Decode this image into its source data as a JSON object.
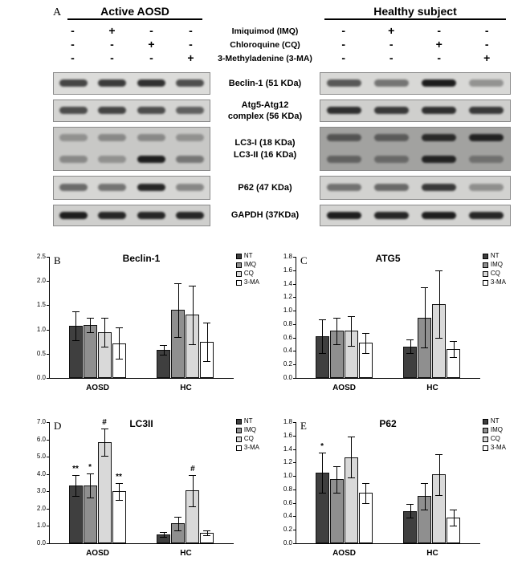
{
  "figure": {
    "panel_a_letter": "A"
  },
  "panel_a": {
    "left_header": "Active AOSD",
    "right_header": "Healthy subject",
    "treatments": [
      {
        "label": "Imiquimod (IMQ)",
        "left": [
          "-",
          "+",
          "-",
          "-"
        ],
        "right": [
          "-",
          "+",
          "-",
          "-"
        ]
      },
      {
        "label": "Chloroquine (CQ)",
        "left": [
          "-",
          "-",
          "+",
          "-"
        ],
        "right": [
          "-",
          "-",
          "+",
          "-"
        ]
      },
      {
        "label": "3-Methyladenine (3-MA)",
        "left": [
          "-",
          "-",
          "-",
          "+"
        ],
        "right": [
          "-",
          "-",
          "-",
          "+"
        ]
      }
    ],
    "blots": [
      {
        "label": "Beclin-1 (51 KDa)",
        "left": {
          "bg": "#dcdcda",
          "rows": [
            [
              0.75,
              0.8,
              0.85,
              0.7
            ]
          ]
        },
        "right": {
          "bg": "#d8d8d6",
          "rows": [
            [
              0.65,
              0.5,
              0.95,
              0.35
            ]
          ]
        }
      },
      {
        "label": "Atg5-Atg12\ncomplex (56 KDa)",
        "left": {
          "bg": "#d4d4d2",
          "rows": [
            [
              0.7,
              0.75,
              0.7,
              0.6
            ]
          ]
        },
        "right": {
          "bg": "#cfcfcd",
          "rows": [
            [
              0.85,
              0.8,
              0.85,
              0.8
            ]
          ]
        }
      },
      {
        "label": "LC3-I (18 KDa)\nLC3-II (16 KDa)",
        "left": {
          "bg": "#c8c8c6",
          "rows": [
            [
              0.3,
              0.35,
              0.35,
              0.3
            ],
            [
              0.35,
              0.3,
              0.95,
              0.45
            ]
          ]
        },
        "right": {
          "bg": "#a2a2a0",
          "rows": [
            [
              0.55,
              0.5,
              0.85,
              0.9
            ],
            [
              0.45,
              0.4,
              0.9,
              0.35
            ]
          ]
        }
      },
      {
        "label": "P62 (47 KDa)",
        "left": {
          "bg": "#d6d6d4",
          "rows": [
            [
              0.55,
              0.5,
              0.9,
              0.4
            ]
          ]
        },
        "right": {
          "bg": "#d2d2d0",
          "rows": [
            [
              0.5,
              0.55,
              0.8,
              0.35
            ]
          ]
        }
      },
      {
        "label": "GAPDH (37KDa)",
        "left": {
          "bg": "#cfcfcd",
          "rows": [
            [
              0.95,
              0.9,
              0.9,
              0.9
            ]
          ]
        },
        "right": {
          "bg": "#d4d4d2",
          "rows": [
            [
              0.95,
              0.9,
              0.95,
              0.9
            ]
          ]
        }
      }
    ]
  },
  "legend": {
    "series": [
      "NT",
      "IMQ",
      "CQ",
      "3-MA"
    ],
    "colors": [
      "#3f3f3f",
      "#8f8f8f",
      "#d9d9d9",
      "#ffffff"
    ]
  },
  "chart_data": [
    {
      "type": "bar",
      "panel_label": "B",
      "title": "Beclin-1",
      "ymax": 2.5,
      "yticks": [
        "0.0",
        "0.5",
        "1.0",
        "1.5",
        "2.0",
        "2.5"
      ],
      "categories": [
        "AOSD",
        "HC"
      ],
      "group_centers": [
        0.26,
        0.74
      ],
      "series": [
        {
          "name": "NT",
          "color": "#3f3f3f",
          "values": [
            1.08,
            0.58
          ],
          "errors": [
            0.3,
            0.1
          ],
          "annotations": [
            "",
            ""
          ]
        },
        {
          "name": "IMQ",
          "color": "#8f8f8f",
          "values": [
            1.1,
            1.4
          ],
          "errors": [
            0.15,
            0.55
          ],
          "annotations": [
            "",
            ""
          ]
        },
        {
          "name": "CQ",
          "color": "#d9d9d9",
          "values": [
            0.95,
            1.3
          ],
          "errors": [
            0.3,
            0.6
          ],
          "annotations": [
            "",
            ""
          ]
        },
        {
          "name": "3-MA",
          "color": "#ffffff",
          "values": [
            0.72,
            0.75
          ],
          "errors": [
            0.32,
            0.4
          ],
          "annotations": [
            "",
            ""
          ]
        }
      ]
    },
    {
      "type": "bar",
      "panel_label": "C",
      "title": "ATG5",
      "ymax": 1.8,
      "yticks": [
        "0.0",
        "0.2",
        "0.4",
        "0.6",
        "0.8",
        "1.0",
        "1.2",
        "1.4",
        "1.6",
        "1.8"
      ],
      "categories": [
        "AOSD",
        "HC"
      ],
      "group_centers": [
        0.26,
        0.74
      ],
      "series": [
        {
          "name": "NT",
          "color": "#3f3f3f",
          "values": [
            0.62,
            0.47
          ],
          "errors": [
            0.25,
            0.1
          ],
          "annotations": [
            "",
            ""
          ]
        },
        {
          "name": "IMQ",
          "color": "#8f8f8f",
          "values": [
            0.7,
            0.9
          ],
          "errors": [
            0.2,
            0.45
          ],
          "annotations": [
            "",
            ""
          ]
        },
        {
          "name": "CQ",
          "color": "#d9d9d9",
          "values": [
            0.7,
            1.1
          ],
          "errors": [
            0.22,
            0.5
          ],
          "annotations": [
            "",
            ""
          ]
        },
        {
          "name": "3-MA",
          "color": "#ffffff",
          "values": [
            0.52,
            0.43
          ],
          "errors": [
            0.15,
            0.12
          ],
          "annotations": [
            "",
            ""
          ]
        }
      ]
    },
    {
      "type": "bar",
      "panel_label": "D",
      "title": "LC3II",
      "ymax": 7.0,
      "yticks": [
        "0.0",
        "1.0",
        "2.0",
        "3.0",
        "4.0",
        "5.0",
        "6.0",
        "7.0"
      ],
      "categories": [
        "AOSD",
        "HC"
      ],
      "group_centers": [
        0.26,
        0.74
      ],
      "series": [
        {
          "name": "NT",
          "color": "#3f3f3f",
          "values": [
            3.35,
            0.5
          ],
          "errors": [
            0.6,
            0.15
          ],
          "annotations": [
            "**",
            ""
          ]
        },
        {
          "name": "IMQ",
          "color": "#8f8f8f",
          "values": [
            3.35,
            1.15
          ],
          "errors": [
            0.7,
            0.4
          ],
          "annotations": [
            "*",
            ""
          ]
        },
        {
          "name": "CQ",
          "color": "#d9d9d9",
          "values": [
            5.85,
            3.05
          ],
          "errors": [
            0.8,
            0.9
          ],
          "annotations": [
            "#",
            "#"
          ]
        },
        {
          "name": "3-MA",
          "color": "#ffffff",
          "values": [
            3.0,
            0.6
          ],
          "errors": [
            0.5,
            0.15
          ],
          "annotations": [
            "**",
            ""
          ]
        }
      ]
    },
    {
      "type": "bar",
      "panel_label": "E",
      "title": "P62",
      "ymax": 1.8,
      "yticks": [
        "0.0",
        "0.2",
        "0.4",
        "0.6",
        "0.8",
        "1.0",
        "1.2",
        "1.4",
        "1.6",
        "1.8"
      ],
      "categories": [
        "AOSD",
        "HC"
      ],
      "group_centers": [
        0.26,
        0.74
      ],
      "series": [
        {
          "name": "NT",
          "color": "#3f3f3f",
          "values": [
            1.05,
            0.48
          ],
          "errors": [
            0.3,
            0.1
          ],
          "annotations": [
            "*",
            ""
          ]
        },
        {
          "name": "IMQ",
          "color": "#8f8f8f",
          "values": [
            0.95,
            0.7
          ],
          "errors": [
            0.2,
            0.2
          ],
          "annotations": [
            "",
            ""
          ]
        },
        {
          "name": "CQ",
          "color": "#d9d9d9",
          "values": [
            1.28,
            1.02
          ],
          "errors": [
            0.3,
            0.3
          ],
          "annotations": [
            "",
            ""
          ]
        },
        {
          "name": "3-MA",
          "color": "#ffffff",
          "values": [
            0.75,
            0.38
          ],
          "errors": [
            0.15,
            0.12
          ],
          "annotations": [
            "",
            ""
          ]
        }
      ]
    }
  ]
}
